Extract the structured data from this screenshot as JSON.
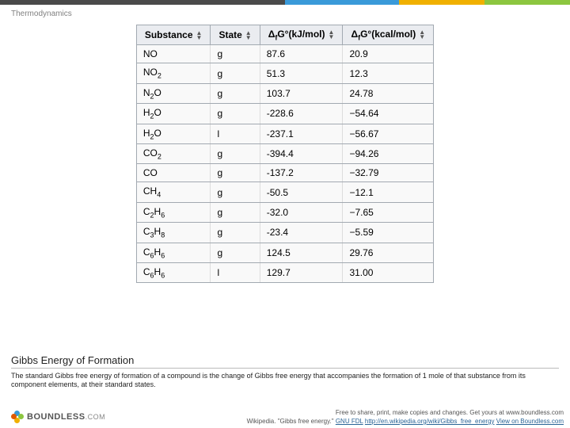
{
  "topBar": {
    "segments": [
      {
        "color": "#4a4a4a",
        "width": "50%"
      },
      {
        "color": "#3a9ad9",
        "width": "20%"
      },
      {
        "color": "#f0b000",
        "width": "15%"
      },
      {
        "color": "#8cc63f",
        "width": "15%"
      }
    ]
  },
  "headerLabel": "Thermodynamics",
  "table": {
    "headers": [
      "Substance",
      "State",
      "Δ_fG°(kJ/mol)",
      "Δ_fG°(kcal/mol)"
    ],
    "rows": [
      {
        "sub": "NO",
        "state": "g",
        "kj": "87.6",
        "kcal": "20.9"
      },
      {
        "sub": "NO<sub>2</sub>",
        "state": "g",
        "kj": "51.3",
        "kcal": "12.3"
      },
      {
        "sub": "N<sub>2</sub>O",
        "state": "g",
        "kj": "103.7",
        "kcal": "24.78"
      },
      {
        "sub": "H<sub>2</sub>O",
        "state": "g",
        "kj": "-228.6",
        "kcal": "−54.64"
      },
      {
        "sub": "H<sub>2</sub>O",
        "state": "l",
        "kj": "-237.1",
        "kcal": "−56.67"
      },
      {
        "sub": "CO<sub>2</sub>",
        "state": "g",
        "kj": "-394.4",
        "kcal": "−94.26"
      },
      {
        "sub": "CO",
        "state": "g",
        "kj": "-137.2",
        "kcal": "−32.79"
      },
      {
        "sub": "CH<sub>4</sub>",
        "state": "g",
        "kj": "-50.5",
        "kcal": "−12.1"
      },
      {
        "sub": "C<sub>2</sub>H<sub>6</sub>",
        "state": "g",
        "kj": "-32.0",
        "kcal": "−7.65"
      },
      {
        "sub": "C<sub>3</sub>H<sub>8</sub>",
        "state": "g",
        "kj": "-23.4",
        "kcal": "−5.59"
      },
      {
        "sub": "C<sub>6</sub>H<sub>6</sub>",
        "state": "g",
        "kj": "124.5",
        "kcal": "29.76"
      },
      {
        "sub": "C<sub>6</sub>H<sub>6</sub>",
        "state": "l",
        "kj": "129.7",
        "kcal": "31.00"
      }
    ]
  },
  "caption": {
    "title": "Gibbs Energy of Formation",
    "body": "The standard Gibbs free energy of formation of a compound is the change of Gibbs free energy that accompanies the formation of 1 mole of that substance from its component elements, at their standard states."
  },
  "footer": {
    "line1": "Free to share, print, make copies and changes. Get yours at www.boundless.com",
    "sourcePrefix": "Wikipedia. \"Gibbs free energy.\" ",
    "license": "GNU FDL",
    "url": "http://en.wikipedia.org/wiki/Gibbs_free_energy",
    "viewText": "View on Boundless.com"
  },
  "logo": {
    "name": "BOUNDLESS",
    "tld": ".COM",
    "petals": [
      "#3a9ad9",
      "#8cc63f",
      "#f0b000",
      "#e05a00"
    ]
  }
}
